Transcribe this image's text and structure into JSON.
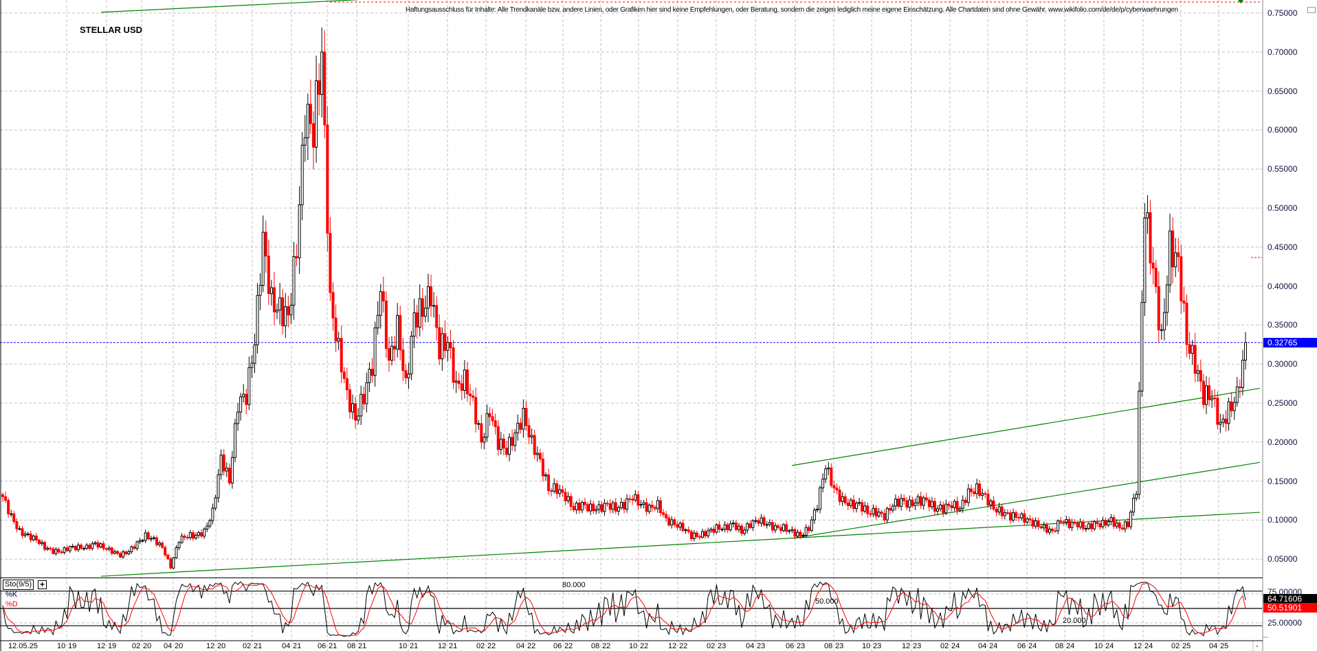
{
  "chart_data": {
    "type": "candlestick",
    "title": "STELLAR USD",
    "disclaimer": "Haftungsausschluss für Inhalte: Alle Trendkanäle bzw. andere Linien, oder Grafiken hier sind keine Empfehlungen, oder Beratung, sondern die zeigen lediglich meine eigene Einschätzung. Alle Chartdaten sind ohne Gewähr.  www.wikifolio.com/de/de/p/cyberwaehrungen",
    "ylim": [
      0.05,
      0.75
    ],
    "y_ticks": [
      "0.75000",
      "0.70000",
      "0.65000",
      "0.60000",
      "0.55000",
      "0.50000",
      "0.45000",
      "0.40000",
      "0.35000",
      "0.30000",
      "0.25000",
      "0.20000",
      "0.15000",
      "0.10000",
      "0.05000"
    ],
    "last_price": 0.32765,
    "last_price_label": "0.32765",
    "grid": true,
    "x_start_label": "12.05.25",
    "x_ticks": [
      {
        "m": "10",
        "y": "19"
      },
      {
        "m": "12",
        "y": "19"
      },
      {
        "m": "02",
        "y": "20"
      },
      {
        "m": "04",
        "y": "20"
      },
      {
        "m": "12",
        "y": "20"
      },
      {
        "m": "02",
        "y": "21"
      },
      {
        "m": "04",
        "y": "21"
      },
      {
        "m": "06",
        "y": "21"
      },
      {
        "m": "08",
        "y": "21"
      },
      {
        "m": "10",
        "y": "21"
      },
      {
        "m": "12",
        "y": "21"
      },
      {
        "m": "02",
        "y": "22"
      },
      {
        "m": "04",
        "y": "22"
      },
      {
        "m": "06",
        "y": "22"
      },
      {
        "m": "08",
        "y": "22"
      },
      {
        "m": "10",
        "y": "22"
      },
      {
        "m": "12",
        "y": "22"
      },
      {
        "m": "02",
        "y": "23"
      },
      {
        "m": "04",
        "y": "23"
      },
      {
        "m": "06",
        "y": "23"
      },
      {
        "m": "08",
        "y": "23"
      },
      {
        "m": "10",
        "y": "23"
      },
      {
        "m": "12",
        "y": "23"
      },
      {
        "m": "02",
        "y": "24"
      },
      {
        "m": "04",
        "y": "24"
      },
      {
        "m": "06",
        "y": "24"
      },
      {
        "m": "08",
        "y": "24"
      },
      {
        "m": "10",
        "y": "24"
      },
      {
        "m": "12",
        "y": "24"
      },
      {
        "m": "02",
        "y": "25"
      },
      {
        "m": "04",
        "y": "25"
      }
    ],
    "x_end_label": "-",
    "closes": [
      0.13,
      0.105,
      0.085,
      0.08,
      0.075,
      0.065,
      0.06,
      0.06,
      0.065,
      0.065,
      0.065,
      0.07,
      0.065,
      0.06,
      0.055,
      0.06,
      0.07,
      0.08,
      0.075,
      0.065,
      0.04,
      0.075,
      0.08,
      0.08,
      0.085,
      0.11,
      0.18,
      0.15,
      0.25,
      0.26,
      0.33,
      0.46,
      0.38,
      0.37,
      0.36,
      0.45,
      0.62,
      0.6,
      0.7,
      0.38,
      0.32,
      0.26,
      0.23,
      0.26,
      0.3,
      0.4,
      0.3,
      0.35,
      0.27,
      0.36,
      0.37,
      0.39,
      0.32,
      0.33,
      0.27,
      0.28,
      0.25,
      0.2,
      0.24,
      0.2,
      0.19,
      0.21,
      0.235,
      0.2,
      0.175,
      0.14,
      0.14,
      0.13,
      0.115,
      0.12,
      0.115,
      0.115,
      0.12,
      0.115,
      0.12,
      0.13,
      0.12,
      0.115,
      0.12,
      0.1,
      0.095,
      0.09,
      0.08,
      0.08,
      0.085,
      0.09,
      0.09,
      0.095,
      0.085,
      0.095,
      0.1,
      0.095,
      0.09,
      0.09,
      0.085,
      0.08,
      0.09,
      0.12,
      0.17,
      0.14,
      0.125,
      0.12,
      0.12,
      0.11,
      0.11,
      0.105,
      0.12,
      0.125,
      0.12,
      0.125,
      0.125,
      0.115,
      0.115,
      0.12,
      0.115,
      0.135,
      0.14,
      0.13,
      0.115,
      0.11,
      0.105,
      0.105,
      0.1,
      0.095,
      0.09,
      0.085,
      0.1,
      0.095,
      0.095,
      0.09,
      0.095,
      0.095,
      0.1,
      0.09,
      0.095,
      0.14,
      0.5,
      0.42,
      0.33,
      0.45,
      0.43,
      0.33,
      0.3,
      0.26,
      0.26,
      0.22,
      0.24,
      0.26,
      0.32765
    ],
    "colors": {
      "up_fill": "#ffffff",
      "up_stroke": "#000000",
      "down": "#ff0000",
      "trendline": "#008000",
      "last_price": "#0000ff",
      "grid": "#c0c0c0"
    },
    "stochastic": {
      "name": "Sto(9/5)",
      "expand_label": "+",
      "k_label": "%K",
      "d_label": "%D",
      "k_value": 64.71606,
      "d_value": 50.51901,
      "k_value_label": "64.71606",
      "d_value_label": "50.51901",
      "level_labels": {
        "upper": "80.000",
        "middle": "50.000",
        "lower": "20.000"
      },
      "axis_labels": [
        "75.00000",
        "25.00000"
      ],
      "ylim": [
        0,
        100
      ],
      "colors": {
        "k": "#000000",
        "d": "#ff0000"
      }
    }
  }
}
